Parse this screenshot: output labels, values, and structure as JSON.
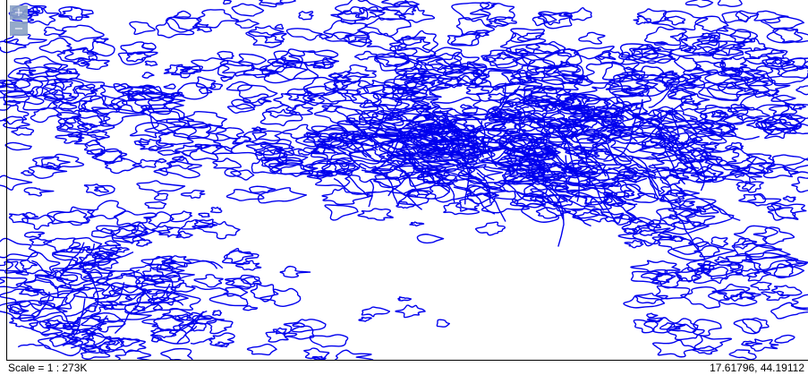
{
  "map": {
    "line_color": "#0000ee",
    "background_color": "#ffffff",
    "feature_type": "contour-polygons"
  },
  "controls": {
    "zoom_in_label": "+",
    "zoom_out_label": "−",
    "button_color": "#8aa1c4"
  },
  "status": {
    "scale": "Scale = 1 : 273K",
    "coordinates": "17.61796, 44.19112"
  }
}
